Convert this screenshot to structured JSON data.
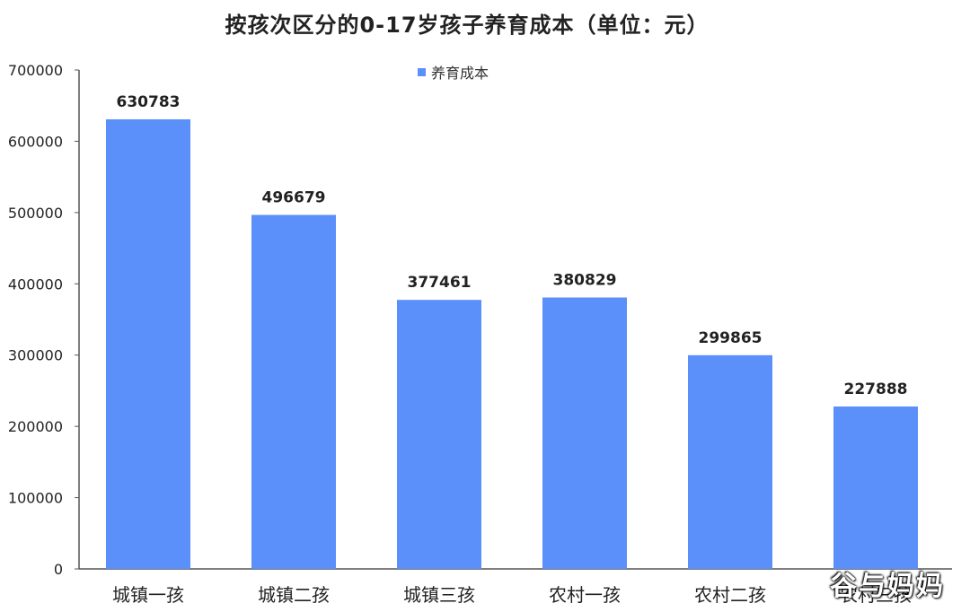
{
  "chart_data": {
    "type": "bar",
    "title": "按孩次区分的0-17岁孩子养育成本（单位：元）",
    "categories": [
      "城镇一孩",
      "城镇二孩",
      "城镇三孩",
      "农村一孩",
      "农村二孩",
      "农村三孩"
    ],
    "series": [
      {
        "name": "养育成本",
        "values": [
          630783,
          496679,
          377461,
          380829,
          299865,
          227888
        ]
      }
    ],
    "ylim": [
      0,
      700000
    ],
    "yticks": [
      0,
      100000,
      200000,
      300000,
      400000,
      500000,
      600000,
      700000
    ],
    "grid": false,
    "legend_position": "top-center",
    "data_labels": true,
    "colors": {
      "bar": "#5B8FF9"
    }
  },
  "watermark": {
    "text": "谷与妈妈"
  }
}
